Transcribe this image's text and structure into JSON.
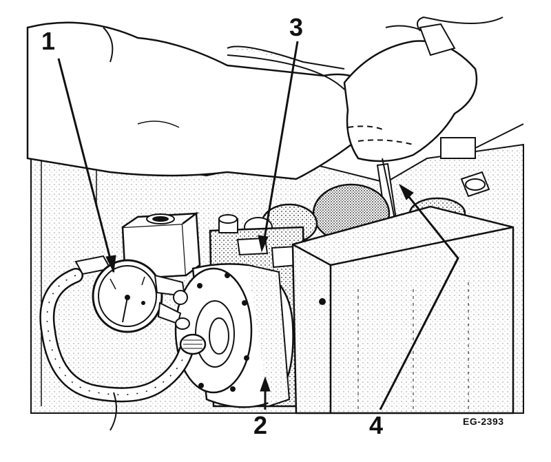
{
  "callouts": [
    {
      "id": "1",
      "label": "1"
    },
    {
      "id": "2",
      "label": "2"
    },
    {
      "id": "3",
      "label": "3"
    },
    {
      "id": "4",
      "label": "4"
    }
  ],
  "figure_id": "EG-2393",
  "colors": {
    "ink": "#111111",
    "paper": "#ffffff",
    "shade": "#cfcfcf"
  }
}
